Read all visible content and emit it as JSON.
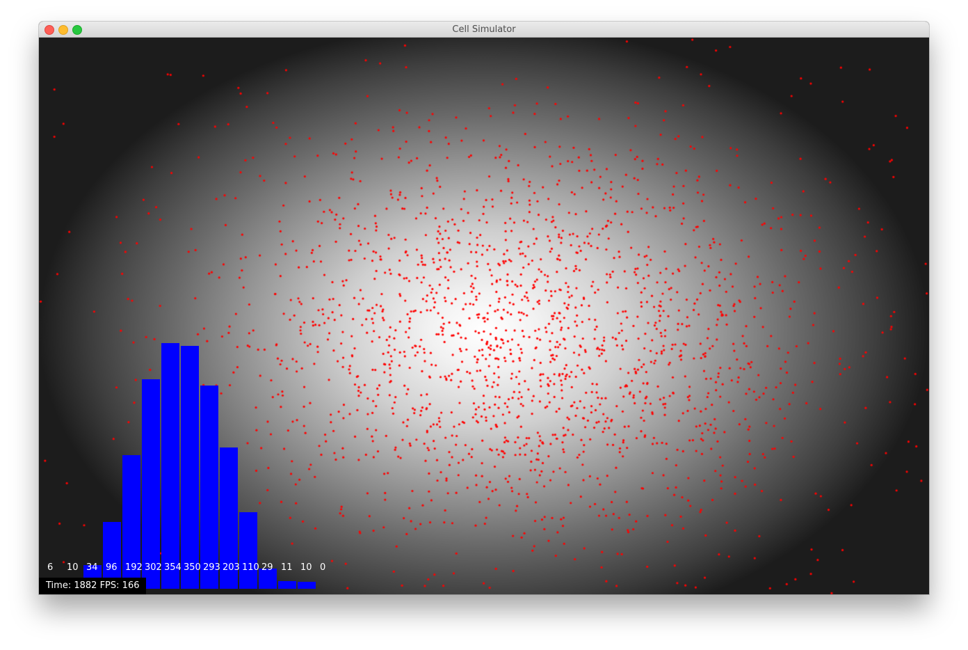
{
  "window": {
    "title": "Cell Simulator",
    "controls": [
      "close",
      "minimize",
      "zoom"
    ]
  },
  "simulation": {
    "particle_color": "#ff0000",
    "background": "radial gradient, white center to dark edges",
    "particle_count_estimate": 2000
  },
  "chart_data": {
    "type": "bar",
    "values": [
      6,
      10,
      34,
      96,
      192,
      302,
      354,
      350,
      293,
      203,
      110,
      29,
      11,
      10,
      0
    ],
    "data_labels": [
      "6",
      "10",
      "34",
      "96",
      "192",
      "302",
      "354",
      "350",
      "293",
      "203",
      "110",
      "29",
      "11",
      "10",
      "0"
    ],
    "bar_color": "#0000ff",
    "label_color": "#ffffff",
    "title": "",
    "xlabel": "",
    "ylabel": ""
  },
  "status": {
    "time_label": "Time:",
    "time_value": "1882",
    "fps_label": "FPS:",
    "fps_value": "166"
  }
}
